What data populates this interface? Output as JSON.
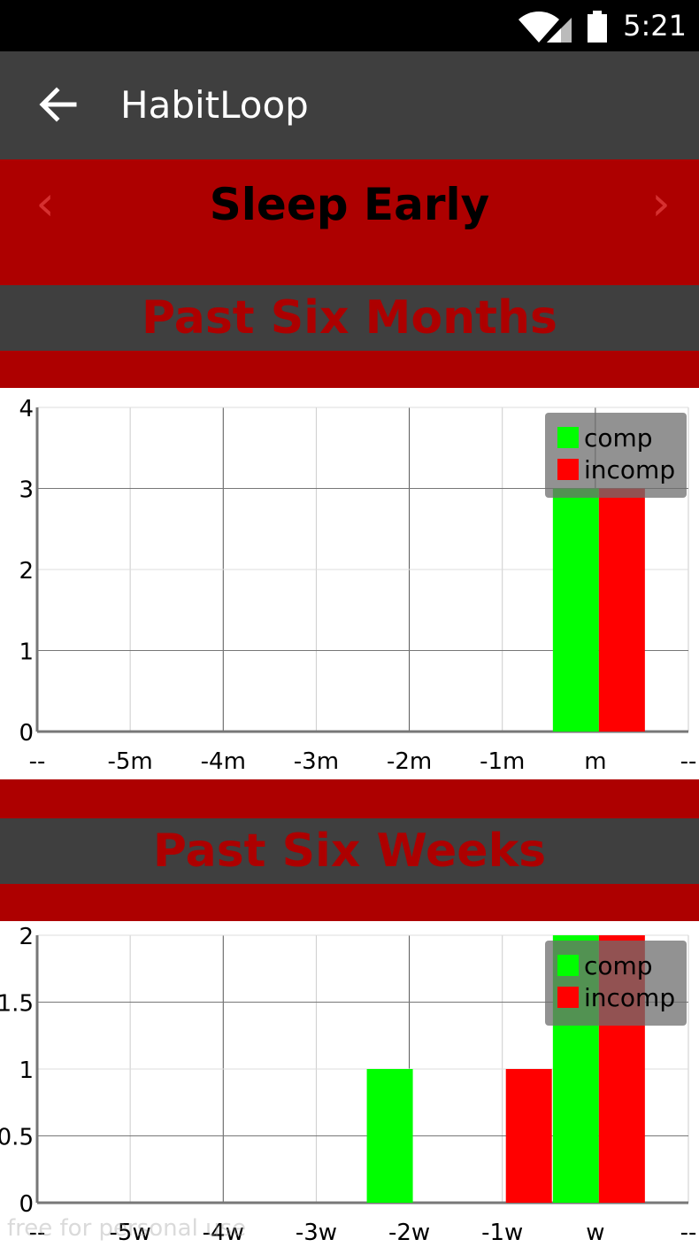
{
  "status_bar": {
    "time": "5:21",
    "icons": [
      "wifi-icon",
      "signal-icon",
      "battery-icon"
    ]
  },
  "app_bar": {
    "title": "HabitLoop",
    "back_icon": "arrow-left-icon"
  },
  "habit": {
    "name": "Sleep Early",
    "prev_label": "‹",
    "next_label": "›"
  },
  "sections": {
    "months_title": "Past Six Months",
    "weeks_title": "Past Six Weeks"
  },
  "watermark": "free for personal use",
  "colors": {
    "header_red": "#ad0000",
    "dark_gray": "#3f3f3f",
    "comp": "#00ff00",
    "incomp": "#ff0000"
  },
  "chart_data": [
    {
      "type": "bar",
      "title": "",
      "categories": [
        "--",
        "-5m",
        "-4m",
        "-3m",
        "-2m",
        "-1m",
        "m",
        "--"
      ],
      "series": [
        {
          "name": "comp",
          "values": [
            0,
            0,
            0,
            0,
            0,
            0,
            3,
            0
          ]
        },
        {
          "name": "incomp",
          "values": [
            0,
            0,
            0,
            0,
            0,
            0,
            3,
            0
          ]
        }
      ],
      "yticks": [
        "0",
        "1",
        "2",
        "3",
        "4"
      ],
      "ylim": [
        0,
        4
      ],
      "grid": true,
      "legend": "top-right"
    },
    {
      "type": "bar",
      "title": "",
      "categories": [
        "--",
        "-5w",
        "-4w",
        "-3w",
        "-2w",
        "-1w",
        "w",
        "--"
      ],
      "series": [
        {
          "name": "comp",
          "values": [
            0,
            0,
            0,
            0,
            1,
            0,
            2,
            0
          ]
        },
        {
          "name": "incomp",
          "values": [
            0,
            0,
            0,
            0,
            0,
            1,
            2,
            0
          ]
        }
      ],
      "yticks": [
        "0",
        "0.5",
        "1",
        "1.5",
        "2"
      ],
      "ylim": [
        0,
        2
      ],
      "grid": true,
      "legend": "top-right"
    }
  ]
}
